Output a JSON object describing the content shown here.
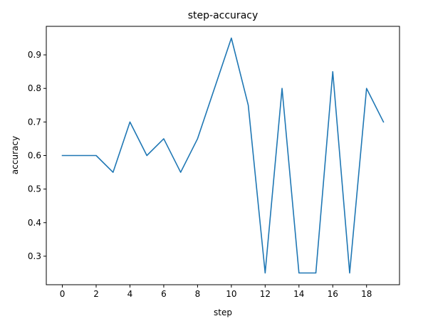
{
  "chart_data": {
    "type": "line",
    "title": "step-accuracy",
    "xlabel": "step",
    "ylabel": "accuracy",
    "x": [
      0,
      1,
      2,
      3,
      4,
      5,
      6,
      7,
      8,
      9,
      10,
      11,
      12,
      13,
      14,
      15,
      16,
      17,
      18,
      19
    ],
    "series": [
      {
        "values": [
          0.6,
          0.6,
          0.6,
          0.55,
          0.7,
          0.6,
          0.65,
          0.55,
          0.65,
          0.8,
          0.95,
          0.75,
          0.25,
          0.8,
          0.25,
          0.25,
          0.85,
          0.25,
          0.8,
          0.7
        ],
        "color": "#1f77b4"
      }
    ],
    "xticks": [
      "0",
      "2",
      "4",
      "6",
      "8",
      "10",
      "12",
      "14",
      "16",
      "18"
    ],
    "yticks": [
      "0.3",
      "0.4",
      "0.5",
      "0.6",
      "0.7",
      "0.8",
      "0.9"
    ],
    "xlim": [
      -0.95,
      19.95
    ],
    "ylim": [
      0.215,
      0.985
    ],
    "grid": false
  }
}
